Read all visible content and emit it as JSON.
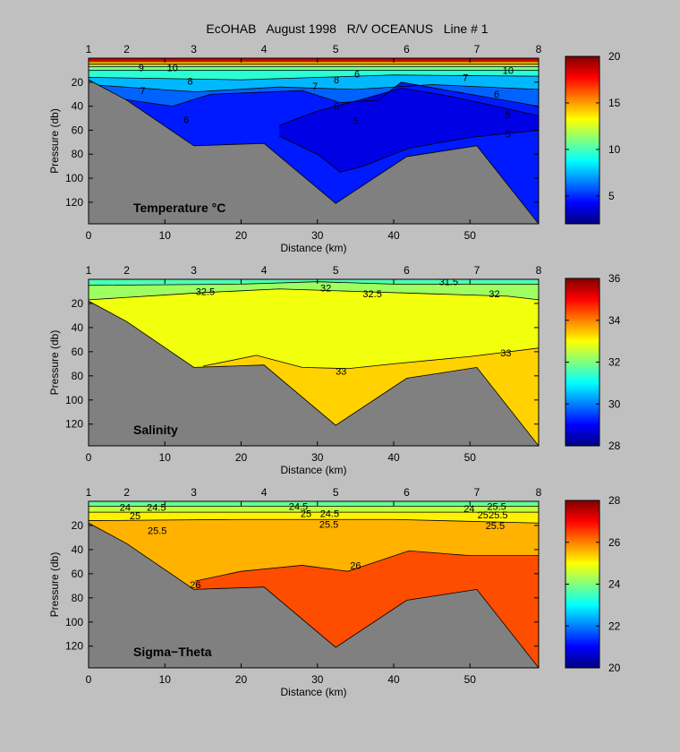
{
  "figure": {
    "title": "EcOHAB   August 1998   R/V OCEANUS   Line # 1",
    "background": "#c0c0c0",
    "bathymetry_color": "#808080"
  },
  "chart_data": [
    {
      "type": "heatmap",
      "panel_label": "Temperature °C",
      "xlabel": "Distance (km)",
      "ylabel": "Pressure (db)",
      "xlim": [
        0,
        59
      ],
      "ylim": [
        138,
        0
      ],
      "y_inverted": true,
      "xticks": [
        0,
        10,
        20,
        30,
        40,
        50
      ],
      "yticks": [
        20,
        40,
        60,
        80,
        100,
        120
      ],
      "stations": [
        "1",
        "2",
        "3",
        "4",
        "5",
        "6",
        "7",
        "8"
      ],
      "station_x": [
        0,
        5,
        13.8,
        23,
        32.4,
        41.7,
        50.9,
        59
      ],
      "bottom_profile": [
        [
          0,
          18
        ],
        [
          5,
          35
        ],
        [
          13.8,
          73
        ],
        [
          23,
          71
        ],
        [
          32.4,
          121
        ],
        [
          41.7,
          82
        ],
        [
          50.9,
          73
        ],
        [
          59,
          138
        ]
      ],
      "colorbar": {
        "min": 2,
        "max": 20,
        "ticks": [
          5,
          10,
          15,
          20
        ]
      },
      "contour_labels": [
        {
          "value": "9",
          "x": 6.9,
          "y": 8
        },
        {
          "value": "10",
          "x": 11,
          "y": 8
        },
        {
          "value": "8",
          "x": 13.3,
          "y": 19
        },
        {
          "value": "7",
          "x": 7.1,
          "y": 27
        },
        {
          "value": "6",
          "x": 12.8,
          "y": 51
        },
        {
          "value": "7",
          "x": 29.7,
          "y": 23
        },
        {
          "value": "8",
          "x": 32.5,
          "y": 18
        },
        {
          "value": "6",
          "x": 32.5,
          "y": 40
        },
        {
          "value": "5",
          "x": 35,
          "y": 52
        },
        {
          "value": "6",
          "x": 53.5,
          "y": 30
        },
        {
          "value": "5",
          "x": 55,
          "y": 47
        },
        {
          "value": "5",
          "x": 55,
          "y": 63
        },
        {
          "value": "6",
          "x": 35.2,
          "y": 13
        },
        {
          "value": "7",
          "x": 49.4,
          "y": 16
        },
        {
          "value": "10",
          "x": 55,
          "y": 10
        }
      ]
    },
    {
      "type": "heatmap",
      "panel_label": "Salinity",
      "xlabel": "Distance (km)",
      "ylabel": "Pressure (db)",
      "xlim": [
        0,
        59
      ],
      "ylim": [
        138,
        0
      ],
      "y_inverted": true,
      "xticks": [
        0,
        10,
        20,
        30,
        40,
        50
      ],
      "yticks": [
        20,
        40,
        60,
        80,
        100,
        120
      ],
      "stations": [
        "1",
        "2",
        "3",
        "4",
        "5",
        "6",
        "7",
        "8"
      ],
      "station_x": [
        0,
        5,
        13.8,
        23,
        32.4,
        41.7,
        50.9,
        59
      ],
      "bottom_profile": [
        [
          0,
          18
        ],
        [
          5,
          35
        ],
        [
          13.8,
          73
        ],
        [
          23,
          71
        ],
        [
          32.4,
          121
        ],
        [
          41.7,
          82
        ],
        [
          50.9,
          73
        ],
        [
          59,
          138
        ]
      ],
      "colorbar": {
        "min": 28,
        "max": 36,
        "ticks": [
          28,
          30,
          32,
          34,
          36
        ]
      },
      "contour_labels": [
        {
          "value": "32.5",
          "x": 15.3,
          "y": 10
        },
        {
          "value": "32",
          "x": 31.1,
          "y": 7
        },
        {
          "value": "32.5",
          "x": 37.2,
          "y": 12
        },
        {
          "value": "31.5",
          "x": 47.2,
          "y": 2
        },
        {
          "value": "32",
          "x": 53.2,
          "y": 12
        },
        {
          "value": "33",
          "x": 33.1,
          "y": 76
        },
        {
          "value": "33",
          "x": 54.7,
          "y": 61
        }
      ]
    },
    {
      "type": "heatmap",
      "panel_label": "Sigma−Theta",
      "xlabel": "Distance (km)",
      "ylabel": "Pressure (db)",
      "xlim": [
        0,
        59
      ],
      "ylim": [
        138,
        0
      ],
      "y_inverted": true,
      "xticks": [
        0,
        10,
        20,
        30,
        40,
        50
      ],
      "yticks": [
        20,
        40,
        60,
        80,
        100,
        120
      ],
      "stations": [
        "1",
        "2",
        "3",
        "4",
        "5",
        "6",
        "7",
        "8"
      ],
      "station_x": [
        0,
        5,
        13.8,
        23,
        32.4,
        41.7,
        50.9,
        59
      ],
      "bottom_profile": [
        [
          0,
          18
        ],
        [
          5,
          35
        ],
        [
          13.8,
          73
        ],
        [
          23,
          71
        ],
        [
          32.4,
          121
        ],
        [
          41.7,
          82
        ],
        [
          50.9,
          73
        ],
        [
          59,
          138
        ]
      ],
      "colorbar": {
        "min": 20,
        "max": 28,
        "ticks": [
          20,
          22,
          24,
          26,
          28
        ]
      },
      "contour_labels": [
        {
          "value": "24",
          "x": 4.8,
          "y": 5
        },
        {
          "value": "24.5",
          "x": 8.9,
          "y": 5
        },
        {
          "value": "25",
          "x": 6.1,
          "y": 12
        },
        {
          "value": "25.5",
          "x": 9,
          "y": 24
        },
        {
          "value": "24.5",
          "x": 27.5,
          "y": 4
        },
        {
          "value": "25",
          "x": 28.5,
          "y": 10
        },
        {
          "value": "24.5",
          "x": 31.6,
          "y": 10
        },
        {
          "value": "25.5",
          "x": 31.5,
          "y": 19
        },
        {
          "value": "26",
          "x": 35,
          "y": 53
        },
        {
          "value": "26",
          "x": 14,
          "y": 69
        },
        {
          "value": "24",
          "x": 49.9,
          "y": 6
        },
        {
          "value": "25.5",
          "x": 53.5,
          "y": 4
        },
        {
          "value": "25",
          "x": 51.7,
          "y": 11
        },
        {
          "value": "25.5",
          "x": 53.7,
          "y": 11
        },
        {
          "value": "25.5",
          "x": 53.3,
          "y": 20
        }
      ]
    }
  ]
}
